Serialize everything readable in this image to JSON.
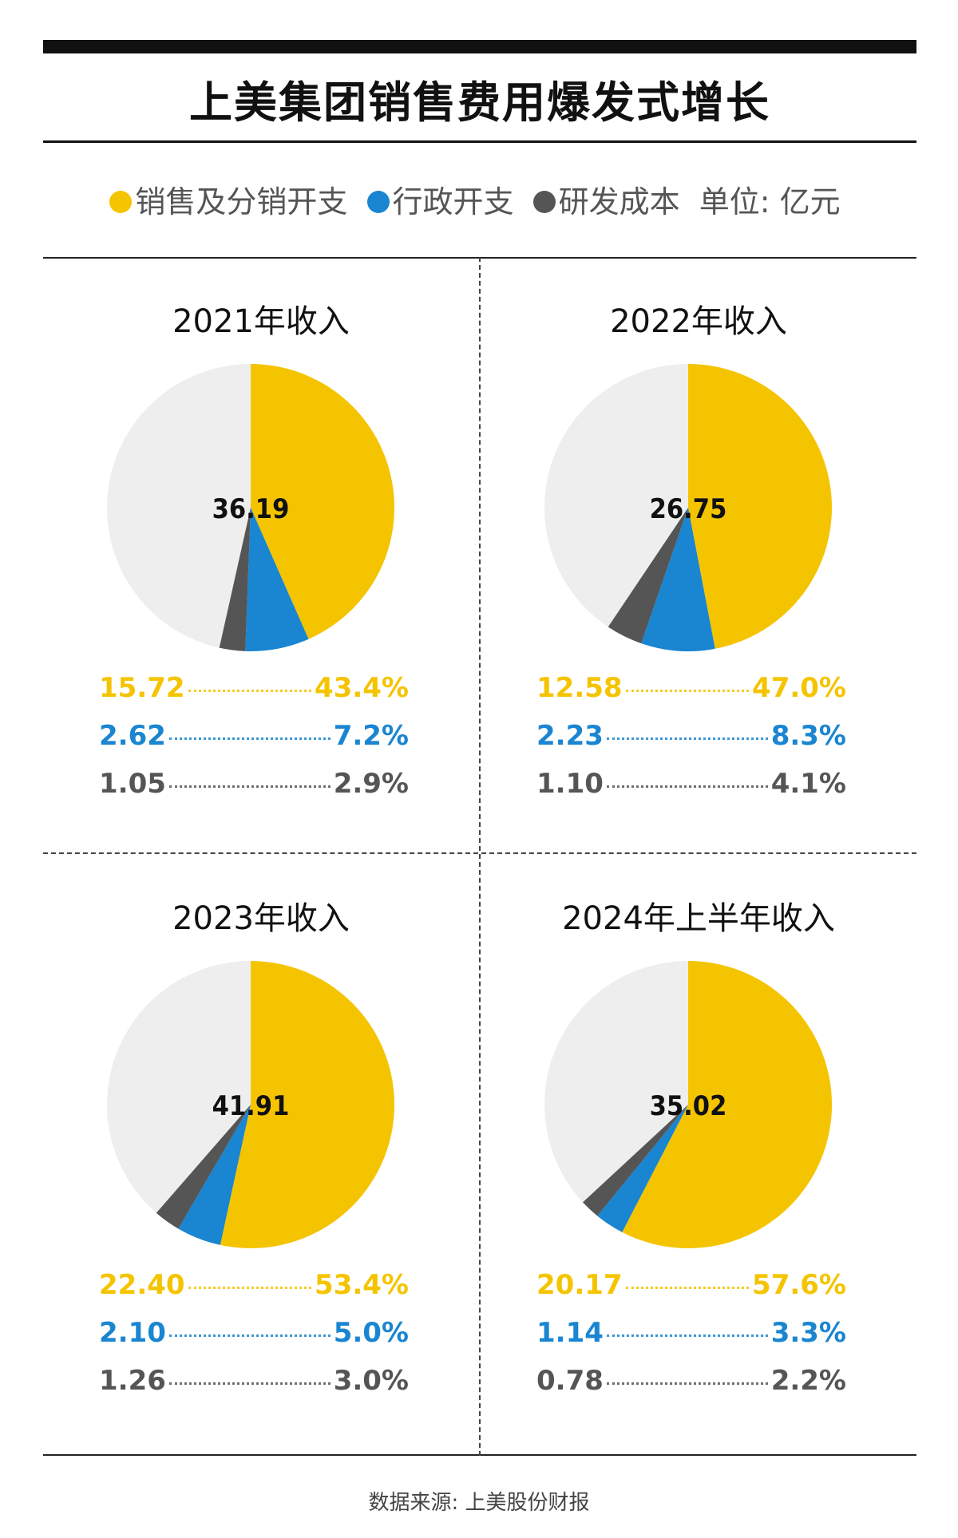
{
  "title": "上美集团销售费用爆发式增长",
  "legend": {
    "items": [
      {
        "label": "销售及分销开支",
        "color": "#F5C400"
      },
      {
        "label": "行政开支",
        "color": "#1A85D0"
      },
      {
        "label": "研发成本",
        "color": "#555555"
      }
    ],
    "unit": "单位: 亿元"
  },
  "colors": {
    "sales": "#F5C400",
    "admin": "#1A85D0",
    "rnd": "#555555",
    "rest": "#EEEEEE"
  },
  "chart_data": [
    {
      "type": "pie",
      "title": "2021年收入",
      "total": "36.19",
      "slices": [
        {
          "name": "销售及分销开支",
          "value": "15.72",
          "percent": "43.4%",
          "share": 43.4
        },
        {
          "name": "行政开支",
          "value": "2.62",
          "percent": "7.2%",
          "share": 7.2
        },
        {
          "name": "研发成本",
          "value": "1.05",
          "percent": "2.9%",
          "share": 2.9
        }
      ]
    },
    {
      "type": "pie",
      "title": "2022年收入",
      "total": "26.75",
      "slices": [
        {
          "name": "销售及分销开支",
          "value": "12.58",
          "percent": "47.0%",
          "share": 47.0
        },
        {
          "name": "行政开支",
          "value": "2.23",
          "percent": "8.3%",
          "share": 8.3
        },
        {
          "name": "研发成本",
          "value": "1.10",
          "percent": "4.1%",
          "share": 4.1
        }
      ]
    },
    {
      "type": "pie",
      "title": "2023年收入",
      "total": "41.91",
      "slices": [
        {
          "name": "销售及分销开支",
          "value": "22.40",
          "percent": "53.4%",
          "share": 53.4
        },
        {
          "name": "行政开支",
          "value": "2.10",
          "percent": "5.0%",
          "share": 5.0
        },
        {
          "name": "研发成本",
          "value": "1.26",
          "percent": "3.0%",
          "share": 3.0
        }
      ]
    },
    {
      "type": "pie",
      "title": "2024年上半年收入",
      "total": "35.02",
      "slices": [
        {
          "name": "销售及分销开支",
          "value": "20.17",
          "percent": "57.6%",
          "share": 57.6
        },
        {
          "name": "行政开支",
          "value": "1.14",
          "percent": "3.3%",
          "share": 3.3
        },
        {
          "name": "研发成本",
          "value": "0.78",
          "percent": "2.2%",
          "share": 2.2
        }
      ]
    }
  ],
  "source": "数据来源: 上美股份财报"
}
